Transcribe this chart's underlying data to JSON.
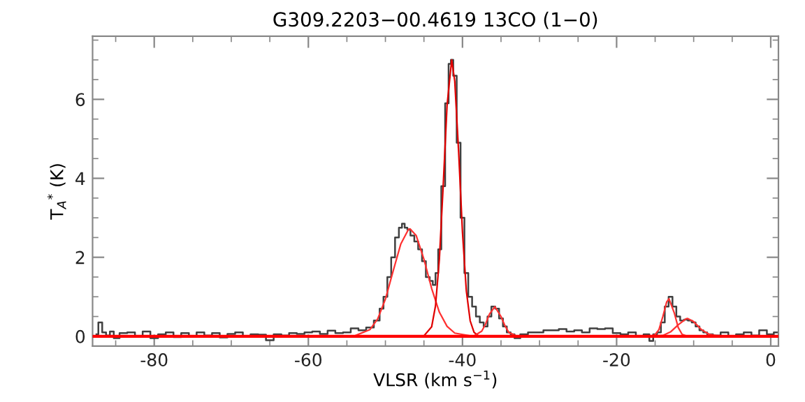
{
  "chart_data": {
    "type": "line",
    "title": "G309.2203−00.4619 13CO (1−0)",
    "xlabel": "VLSR (km s$^{−1}$)",
    "ylabel": "T$_{A}$$^{*}$ (K)",
    "xlim": [
      -88,
      1
    ],
    "xticks": [
      -80,
      -60,
      -40,
      -20,
      0
    ],
    "ylim": [
      -0.25,
      7.6
    ],
    "yticks": [
      0,
      2,
      4,
      6
    ],
    "grid": false,
    "ref_lines": [
      {
        "axis": "y",
        "value": 0,
        "color": "#ff0000"
      }
    ],
    "series": [
      {
        "type": "step",
        "color": "#404040",
        "x": [
          -87.5,
          -87,
          -86.5,
          -86,
          -85.5,
          -85,
          -84,
          -83,
          -82,
          -81,
          -80,
          -79,
          -78,
          -77,
          -76,
          -75,
          -74,
          -73,
          -72,
          -71,
          -70,
          -69,
          -68,
          -67,
          -66,
          -65,
          -64,
          -63,
          -62,
          -61,
          -60,
          -59,
          -58,
          -57,
          -56,
          -55,
          -54,
          -53,
          -52,
          -51,
          -50.5,
          -50,
          -49.5,
          -49,
          -48.5,
          -48,
          -47.7,
          -47.3,
          -47,
          -46.5,
          -46,
          -45.5,
          -45,
          -44.5,
          -44,
          -43.7,
          -43.3,
          -43,
          -42.5,
          -42,
          -41.6,
          -41.4,
          -41,
          -40.5,
          -40,
          -39.5,
          -39,
          -38.5,
          -38,
          -37.5,
          -37,
          -36.5,
          -36,
          -35.5,
          -35,
          -34.5,
          -34,
          -33.5,
          -33,
          -32,
          -31,
          -30,
          -29,
          -28,
          -27,
          -26,
          -25,
          -24,
          -23,
          -22,
          -21,
          -20,
          -19,
          -18,
          -17,
          -16,
          -15.5,
          -15,
          -14.5,
          -14,
          -13.5,
          -13,
          -12.5,
          -12,
          -11.5,
          -11,
          -10.5,
          -10,
          -9.5,
          -9,
          -8.5,
          -8,
          -7,
          -6,
          -5,
          -4,
          -3,
          -2,
          -1,
          0,
          0.8
        ],
        "values": [
          0.05,
          0.35,
          0.1,
          0.02,
          0.12,
          -0.05,
          0.08,
          0.1,
          0.0,
          0.12,
          -0.05,
          0.05,
          0.1,
          -0.02,
          0.08,
          0.0,
          0.1,
          0.02,
          0.08,
          -0.03,
          0.06,
          0.1,
          0.0,
          0.05,
          0.04,
          -0.1,
          0.05,
          0.02,
          0.08,
          0.06,
          0.1,
          0.12,
          0.06,
          0.14,
          0.08,
          0.1,
          0.2,
          0.15,
          0.22,
          0.4,
          0.7,
          1.0,
          1.5,
          2.0,
          2.5,
          2.75,
          2.85,
          2.75,
          2.7,
          2.55,
          2.4,
          2.2,
          1.9,
          1.5,
          1.4,
          1.3,
          1.6,
          2.2,
          3.8,
          5.9,
          6.9,
          7.0,
          6.6,
          4.9,
          3.0,
          1.6,
          1.0,
          0.75,
          0.5,
          0.35,
          0.25,
          0.5,
          0.75,
          0.7,
          0.45,
          0.25,
          0.1,
          0.05,
          -0.05,
          0.05,
          0.1,
          0.1,
          0.15,
          0.15,
          0.18,
          0.12,
          0.15,
          0.1,
          0.2,
          0.18,
          0.2,
          0.08,
          0.05,
          0.1,
          0.0,
          0.05,
          -0.12,
          0.05,
          0.1,
          0.35,
          0.75,
          1.0,
          0.75,
          0.5,
          0.4,
          0.42,
          0.4,
          0.35,
          0.25,
          0.15,
          0.1,
          0.05,
          0.02,
          0.1,
          0.0,
          0.05,
          0.1,
          0.02,
          0.15,
          0.05,
          0.1
        ]
      },
      {
        "color": "#ff3030",
        "x": [
          -54,
          -52,
          -51,
          -50,
          -49,
          -48,
          -47,
          -46.8,
          -46,
          -45,
          -44,
          -43,
          -42,
          -41,
          -39
        ],
        "values": [
          0.01,
          0.17,
          0.44,
          0.94,
          1.65,
          2.34,
          2.71,
          2.72,
          2.55,
          1.95,
          1.21,
          0.61,
          0.25,
          0.08,
          0.01
        ]
      },
      {
        "color": "#e00000",
        "x": [
          -45,
          -44,
          -43.5,
          -43,
          -42.5,
          -42,
          -41.4,
          -41,
          -40.5,
          -40,
          -39.5,
          -39,
          -38.5,
          -38
        ],
        "values": [
          0.01,
          0.24,
          0.77,
          1.95,
          3.82,
          5.85,
          7.0,
          6.46,
          4.67,
          2.63,
          1.15,
          0.39,
          0.1,
          0.02
        ]
      },
      {
        "color": "#ff3030",
        "x": [
          -38.5,
          -37.5,
          -37,
          -36.5,
          -35.8,
          -35,
          -34.5,
          -34,
          -33
        ],
        "values": [
          0.01,
          0.13,
          0.31,
          0.56,
          0.75,
          0.5,
          0.27,
          0.1,
          0.01
        ]
      },
      {
        "color": "#ff3030",
        "x": [
          -15.5,
          -15,
          -14.5,
          -14,
          -13.5,
          -13.2,
          -12.5,
          -12,
          -11.5,
          -11
        ],
        "values": [
          0.01,
          0.04,
          0.17,
          0.5,
          0.87,
          0.95,
          0.58,
          0.22,
          0.05,
          0.01
        ]
      },
      {
        "color": "#ff3030",
        "x": [
          -15,
          -14,
          -13,
          -12,
          -11,
          -10.8,
          -10,
          -9,
          -8,
          -7
        ],
        "values": [
          0.01,
          0.02,
          0.11,
          0.29,
          0.44,
          0.45,
          0.37,
          0.17,
          0.05,
          0.01
        ]
      }
    ]
  }
}
